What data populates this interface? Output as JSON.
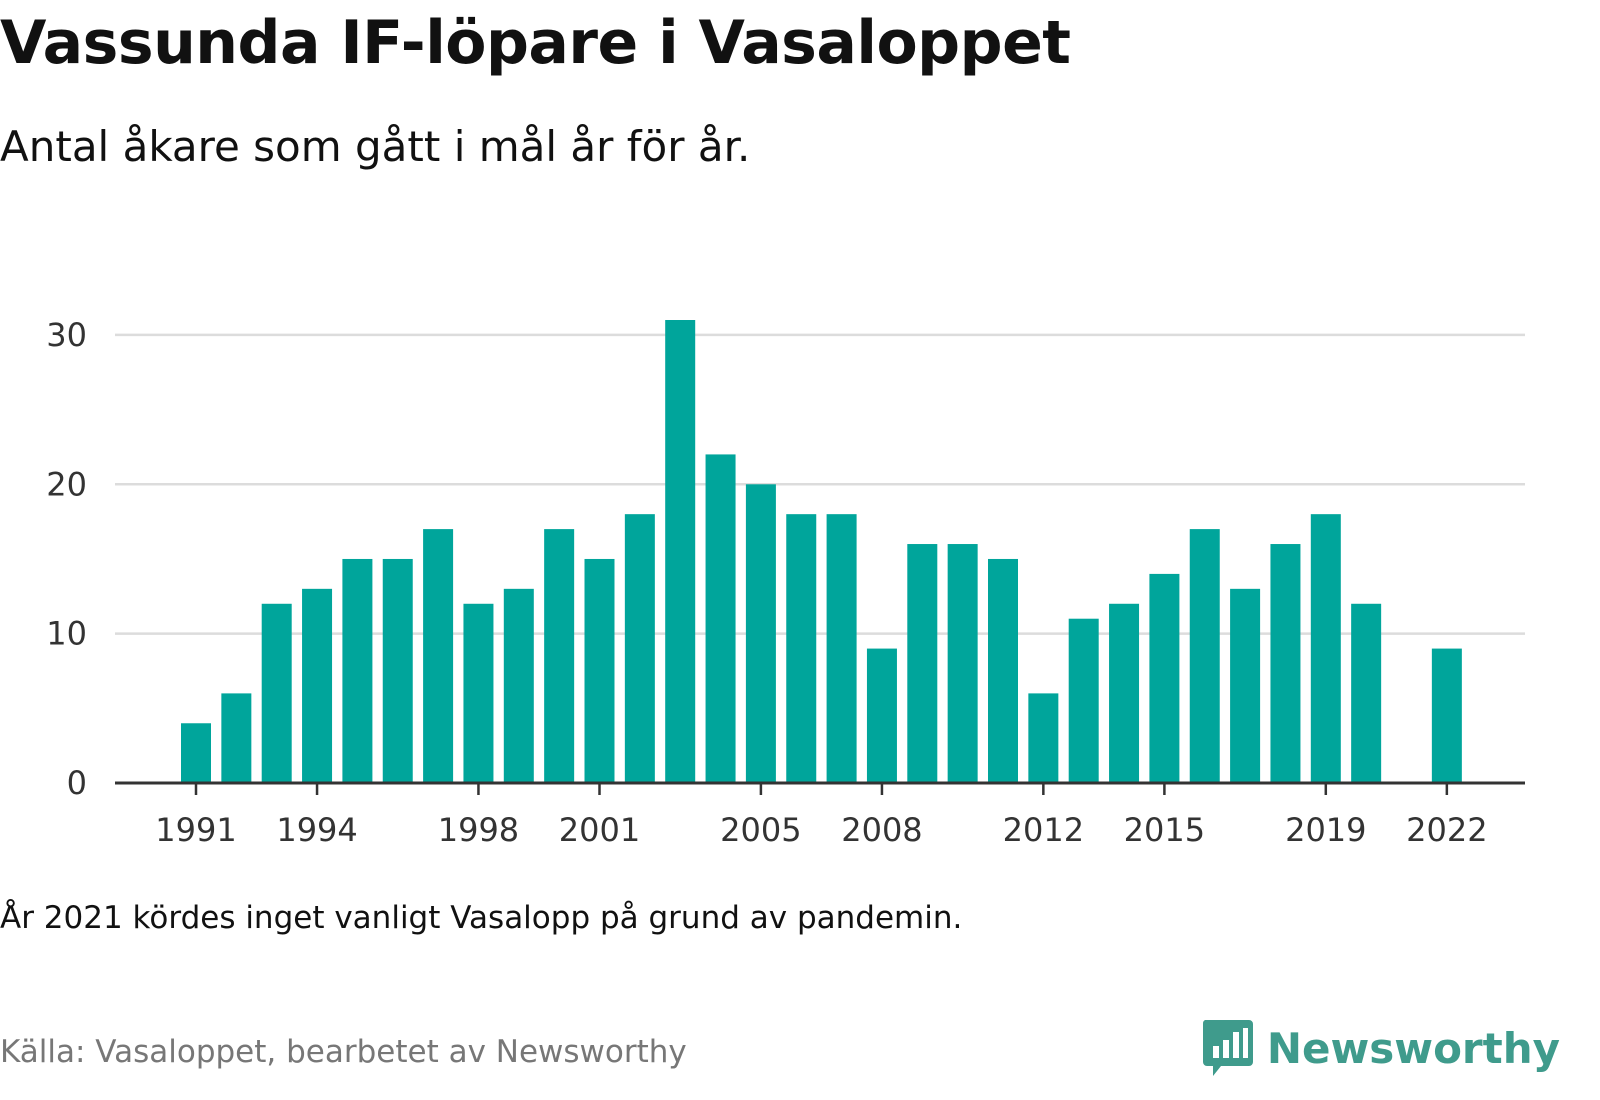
{
  "title": "Vassunda IF-löpare i Vasaloppet",
  "subtitle": "Antal åkare som gått i mål år för år.",
  "footnote": "År 2021 kördes inget vanligt Vasalopp på grund av pandemin.",
  "source": "Källa: Vasaloppet, bearbetet av Newsworthy",
  "brand": {
    "name": "Newsworthy",
    "icon": "newsworthy-logo-icon",
    "color": "#3f9b8c"
  },
  "chart_data": {
    "type": "bar",
    "categories": [
      1991,
      1992,
      1993,
      1994,
      1995,
      1996,
      1997,
      1998,
      1999,
      2000,
      2001,
      2002,
      2003,
      2004,
      2005,
      2006,
      2007,
      2008,
      2009,
      2010,
      2011,
      2012,
      2013,
      2014,
      2015,
      2016,
      2017,
      2018,
      2019,
      2020,
      2021,
      2022
    ],
    "values": [
      4,
      6,
      12,
      13,
      15,
      15,
      17,
      12,
      13,
      17,
      15,
      18,
      31,
      22,
      20,
      18,
      18,
      9,
      16,
      16,
      15,
      6,
      11,
      12,
      14,
      17,
      13,
      16,
      18,
      12,
      null,
      9
    ],
    "x_tick_labels": [
      "1991",
      "1994",
      "1998",
      "2001",
      "2005",
      "2008",
      "2012",
      "2015",
      "2019",
      "2022"
    ],
    "y_ticks": [
      0,
      10,
      20,
      30
    ],
    "ylim": [
      0,
      31
    ],
    "grid": true,
    "bar_color": "#00a59b",
    "xlabel": "",
    "ylabel": ""
  }
}
